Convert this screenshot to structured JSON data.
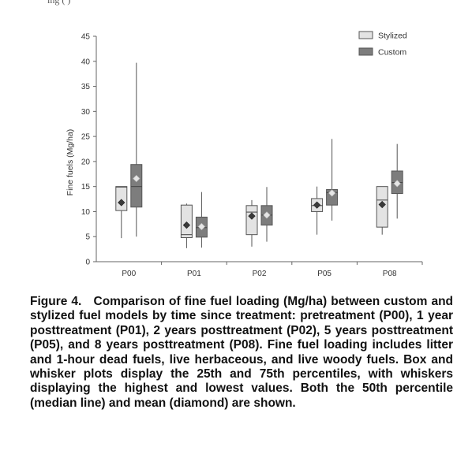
{
  "top_fragment": "ing (                )",
  "chart_data": {
    "type": "box",
    "ylabel": "Fine fuels (Mg/ha)",
    "xlabel": "",
    "ylim": [
      0,
      45
    ],
    "yticks": [
      0,
      5,
      10,
      15,
      20,
      25,
      30,
      35,
      40,
      45
    ],
    "categories": [
      "P00",
      "P01",
      "P02",
      "P05",
      "P08"
    ],
    "legend_position": "top-right",
    "grid": false,
    "series": [
      {
        "name": "Stylized",
        "color": "#e3e3e3",
        "mean_marker_color": "#3a3a3a",
        "boxes": [
          {
            "min": 4.7,
            "q1": 10.2,
            "median": 14.9,
            "q3": 15.0,
            "max": 15.0,
            "mean": 11.8
          },
          {
            "min": 2.7,
            "q1": 4.8,
            "median": 5.4,
            "q3": 11.3,
            "max": 11.6,
            "mean": 7.3
          },
          {
            "min": 3.0,
            "q1": 5.4,
            "median": 9.9,
            "q3": 11.2,
            "max": 12.3,
            "mean": 9.1
          },
          {
            "min": 5.4,
            "q1": 10.0,
            "median": 11.2,
            "q3": 12.6,
            "max": 15.0,
            "mean": 11.3
          },
          {
            "min": 5.4,
            "q1": 6.9,
            "median": 12.3,
            "q3": 15.0,
            "max": 15.0,
            "mean": 11.4
          }
        ]
      },
      {
        "name": "Custom",
        "color": "#7d7d7d",
        "mean_marker_color": "#e6e6e6",
        "boxes": [
          {
            "min": 5.0,
            "q1": 10.9,
            "median": 15.0,
            "q3": 19.4,
            "max": 39.7,
            "mean": 16.6
          },
          {
            "min": 2.8,
            "q1": 4.9,
            "median": 6.8,
            "q3": 8.9,
            "max": 13.9,
            "mean": 7.0
          },
          {
            "min": 4.0,
            "q1": 7.3,
            "median": 9.3,
            "q3": 11.2,
            "max": 14.9,
            "mean": 9.3
          },
          {
            "min": 8.2,
            "q1": 11.3,
            "median": 13.8,
            "q3": 14.4,
            "max": 24.5,
            "mean": 13.7
          },
          {
            "min": 8.6,
            "q1": 13.6,
            "median": 15.8,
            "q3": 18.1,
            "max": 23.5,
            "mean": 15.6
          }
        ]
      }
    ]
  },
  "caption": {
    "label": "Figure 4.",
    "text": "Comparison of fine fuel loading (Mg/ha) between custom and stylized fuel models by time since treatment: pretreatment (P00), 1 year posttreatment (P01), 2 years posttreatment (P02), 5 years posttreatment (P05), and 8 years posttreatment (P08). Fine fuel loading includes litter and 1-hour dead fuels, live herbaceous, and live woody fuels. Box and whisker plots display the 25th and 75th percentiles, with whiskers displaying the highest and lowest values. Both the 50th percentile (median line) and mean (diamond) are shown."
  }
}
